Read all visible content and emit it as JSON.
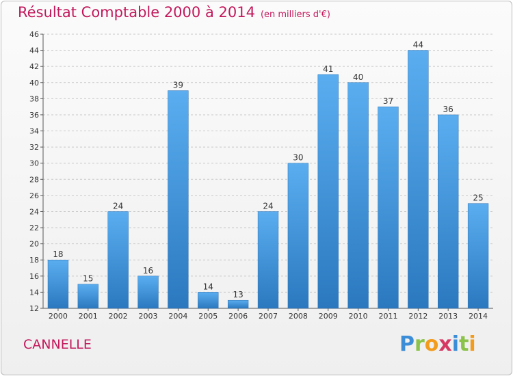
{
  "chart_data": {
    "type": "bar",
    "title": "Résultat Comptable 2000 à 2014",
    "subtitle": "(en milliers d'€)",
    "categories": [
      "2000",
      "2001",
      "2002",
      "2003",
      "2004",
      "2005",
      "2006",
      "2007",
      "2008",
      "2009",
      "2010",
      "2011",
      "2012",
      "2013",
      "2014"
    ],
    "values": [
      18,
      15,
      24,
      16,
      39,
      14,
      13,
      24,
      30,
      41,
      40,
      37,
      44,
      36,
      25
    ],
    "ylim": [
      12,
      46
    ],
    "yticks": [
      12,
      14,
      16,
      18,
      20,
      22,
      24,
      26,
      28,
      30,
      32,
      34,
      36,
      38,
      40,
      42,
      44,
      46
    ],
    "grid": true,
    "bar_color": "#3d8fd6"
  },
  "brand": "CANNELLE",
  "logo": {
    "letters": [
      "P",
      "r",
      "o",
      "x",
      "i",
      "t",
      "i"
    ],
    "colors": [
      "#3b8dd8",
      "#8bc34a",
      "#f29b1d",
      "#d63864",
      "#3b8dd8",
      "#8bc34a",
      "#f29b1d"
    ]
  }
}
